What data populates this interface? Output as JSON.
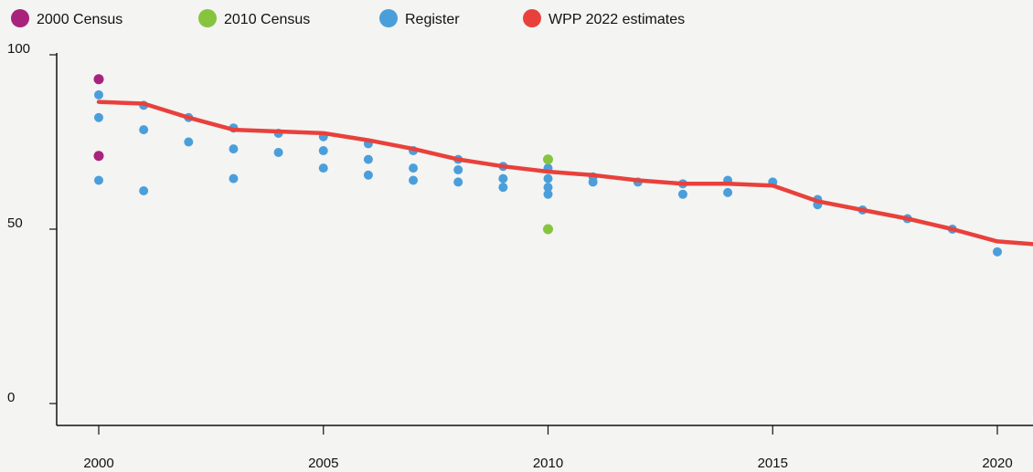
{
  "chart_data": {
    "type": "scatter",
    "title": "",
    "xlabel": "",
    "ylabel": "",
    "xlim": [
      1999,
      2021
    ],
    "ylim": [
      0,
      100
    ],
    "x_ticks": [
      2000,
      2005,
      2010,
      2015,
      2020
    ],
    "y_ticks": [
      0,
      50,
      100
    ],
    "grid": false,
    "legend_position": "top",
    "series": [
      {
        "name": "2000 Census",
        "kind": "points",
        "color": "#a8237b",
        "points": [
          [
            2000,
            93
          ],
          [
            2000,
            71
          ]
        ]
      },
      {
        "name": "2010 Census",
        "kind": "points",
        "color": "#86c440",
        "points": [
          [
            2010,
            70
          ],
          [
            2010,
            50
          ]
        ]
      },
      {
        "name": "Register",
        "kind": "points",
        "color": "#4a9fdb",
        "points": [
          [
            2000,
            88.5
          ],
          [
            2000,
            82
          ],
          [
            2000,
            64
          ],
          [
            2001,
            85.5
          ],
          [
            2001,
            78.5
          ],
          [
            2001,
            61
          ],
          [
            2002,
            82
          ],
          [
            2002,
            75
          ],
          [
            2003,
            79
          ],
          [
            2003,
            73
          ],
          [
            2003,
            64.5
          ],
          [
            2004,
            77.5
          ],
          [
            2004,
            72
          ],
          [
            2005,
            76.5
          ],
          [
            2005,
            72.5
          ],
          [
            2005,
            67.5
          ],
          [
            2006,
            74.5
          ],
          [
            2006,
            70
          ],
          [
            2006,
            65.5
          ],
          [
            2007,
            72.5
          ],
          [
            2007,
            67.5
          ],
          [
            2007,
            64
          ],
          [
            2008,
            70
          ],
          [
            2008,
            67
          ],
          [
            2008,
            63.5
          ],
          [
            2009,
            68
          ],
          [
            2009,
            64.5
          ],
          [
            2009,
            62
          ],
          [
            2010,
            67.5
          ],
          [
            2010,
            64.5
          ],
          [
            2010,
            62
          ],
          [
            2010,
            60
          ],
          [
            2011,
            65
          ],
          [
            2011,
            63.5
          ],
          [
            2012,
            63.5
          ],
          [
            2013,
            63
          ],
          [
            2013,
            60
          ],
          [
            2014,
            64
          ],
          [
            2014,
            60.5
          ],
          [
            2015,
            63.5
          ],
          [
            2016,
            58.5
          ],
          [
            2016,
            57
          ],
          [
            2017,
            55.5
          ],
          [
            2018,
            53
          ],
          [
            2019,
            50
          ],
          [
            2020,
            43.5
          ]
        ]
      },
      {
        "name": "WPP 2022 estimates",
        "kind": "line",
        "color": "#e8413c",
        "points": [
          [
            2000,
            86.5
          ],
          [
            2001,
            86
          ],
          [
            2002,
            82
          ],
          [
            2003,
            78.5
          ],
          [
            2004,
            78
          ],
          [
            2005,
            77.5
          ],
          [
            2006,
            75.5
          ],
          [
            2007,
            73
          ],
          [
            2008,
            70
          ],
          [
            2009,
            68
          ],
          [
            2010,
            66.5
          ],
          [
            2011,
            65.5
          ],
          [
            2012,
            64
          ],
          [
            2013,
            63
          ],
          [
            2014,
            63
          ],
          [
            2015,
            62.5
          ],
          [
            2016,
            58
          ],
          [
            2017,
            55.5
          ],
          [
            2018,
            53
          ],
          [
            2019,
            50
          ],
          [
            2020,
            46.5
          ],
          [
            2021,
            45.5
          ]
        ]
      }
    ]
  }
}
